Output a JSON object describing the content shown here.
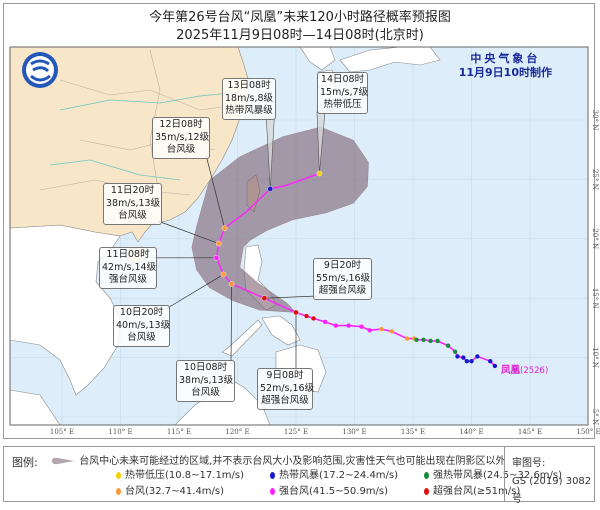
{
  "title": "今年第26号台风“凤凰”未来120小时路径概率预报图",
  "subtitle": "2025年11月9日08时—14日08时(北京时)",
  "agency": {
    "name": "中央气象台",
    "issued": "11月9日10时制作"
  },
  "typhoon": {
    "name": "凤凰",
    "code": "(2526)"
  },
  "axes": {
    "lon_labels": [
      "105° E",
      "110° E",
      "115° E",
      "120° E",
      "125° E",
      "130° E",
      "135° E",
      "140° E",
      "145° E",
      "150° E"
    ],
    "lon_values": [
      105,
      110,
      115,
      120,
      125,
      130,
      135,
      140,
      145,
      150
    ],
    "lat_labels": [
      "30° N",
      "25° N",
      "20° N",
      "15° N",
      "10° N",
      "5° N"
    ],
    "lat_values": [
      30,
      25,
      20,
      15,
      10,
      5
    ]
  },
  "colors": {
    "land_china": "#f8e6c8",
    "land_other": "#ffffff",
    "sea": "#ddeefa",
    "cone": "#7d5f6f",
    "track": "#ff22ff",
    "tropical_depression": "#f5d000",
    "tropical_storm": "#1a1acc",
    "severe_tropical_storm": "#1a8a3a",
    "typhoon": "#ff9a3c",
    "severe_typhoon": "#ff22ff",
    "super_typhoon": "#e01010"
  },
  "forecast_points": [
    {
      "time": "9日08时",
      "wind": "52m/s,16级",
      "grade": "超强台风级",
      "lon": 125.0,
      "lat": 13.8,
      "cat": "super_typhoon"
    },
    {
      "time": "9日20时",
      "wind": "55m/s,16级",
      "grade": "超强台风级",
      "lon": 122.3,
      "lat": 15.0,
      "cat": "super_typhoon"
    },
    {
      "time": "10日08时",
      "wind": "38m/s,13级",
      "grade": "台风级",
      "lon": 119.5,
      "lat": 16.2,
      "cat": "typhoon"
    },
    {
      "time": "10日20时",
      "wind": "40m/s,13级",
      "grade": "台风级",
      "lon": 118.8,
      "lat": 17.0,
      "cat": "typhoon"
    },
    {
      "time": "11日08时",
      "wind": "42m/s,14级",
      "grade": "强台风级",
      "lon": 118.2,
      "lat": 18.4,
      "cat": "severe_typhoon"
    },
    {
      "time": "11日20时",
      "wind": "38m/s,13级",
      "grade": "台风级",
      "lon": 118.4,
      "lat": 19.6,
      "cat": "typhoon"
    },
    {
      "time": "12日08时",
      "wind": "35m/s,12级",
      "grade": "台风级",
      "lon": 118.9,
      "lat": 20.9,
      "cat": "typhoon"
    },
    {
      "time": "13日08时",
      "wind": "18m/s,8级",
      "grade": "热带风暴级",
      "lon": 122.8,
      "lat": 24.2,
      "cat": "tropical_storm"
    },
    {
      "time": "14日08时",
      "wind": "15m/s,7级",
      "grade": "热带低压",
      "lon": 127.0,
      "lat": 25.5,
      "cat": "tropical_depression"
    }
  ],
  "forecast_path": [
    [
      125.0,
      13.8
    ],
    [
      122.3,
      15.0
    ],
    [
      119.5,
      16.2
    ],
    [
      118.8,
      17.0
    ],
    [
      118.2,
      18.4
    ],
    [
      118.4,
      19.6
    ],
    [
      118.9,
      20.9
    ],
    [
      120.8,
      22.3
    ],
    [
      122.8,
      24.2
    ],
    [
      124.2,
      24.5
    ],
    [
      127.0,
      25.5
    ]
  ],
  "past_track": [
    [
      125.0,
      13.8,
      "super_typhoon"
    ],
    [
      125.9,
      13.5,
      "super_typhoon"
    ],
    [
      126.5,
      13.3,
      "super_typhoon"
    ],
    [
      127.5,
      13.0,
      "severe_typhoon"
    ],
    [
      128.4,
      12.7,
      "severe_typhoon"
    ],
    [
      129.5,
      12.7,
      "severe_typhoon"
    ],
    [
      130.6,
      12.6,
      "severe_typhoon"
    ],
    [
      131.3,
      12.3,
      "severe_typhoon"
    ],
    [
      132.3,
      12.4,
      "typhoon"
    ],
    [
      133.2,
      12.2,
      "typhoon"
    ],
    [
      134.5,
      11.6,
      "typhoon"
    ],
    [
      135.1,
      11.6,
      "typhoon"
    ],
    [
      135.3,
      11.5,
      "severe_tropical_storm"
    ],
    [
      135.9,
      11.5,
      "severe_tropical_storm"
    ],
    [
      136.5,
      11.4,
      "severe_tropical_storm"
    ],
    [
      137.1,
      11.4,
      "severe_tropical_storm"
    ],
    [
      138.0,
      11.0,
      "severe_tropical_storm"
    ],
    [
      138.6,
      10.5,
      "severe_tropical_storm"
    ],
    [
      138.8,
      10.1,
      "tropical_storm"
    ],
    [
      139.3,
      10.0,
      "tropical_storm"
    ],
    [
      139.6,
      9.7,
      "tropical_storm"
    ],
    [
      140.0,
      9.7,
      "tropical_storm"
    ],
    [
      140.5,
      10.1,
      "tropical_storm"
    ],
    [
      141.6,
      9.7,
      "tropical_storm"
    ],
    [
      142.0,
      9.3,
      "tropical_storm"
    ]
  ],
  "probability_cone": [
    [
      125.0,
      13.8
    ],
    [
      121.9,
      14.0
    ],
    [
      119.6,
      14.8
    ],
    [
      117.6,
      15.9
    ],
    [
      116.5,
      17.4
    ],
    [
      116.1,
      19.3
    ],
    [
      116.5,
      21.0
    ],
    [
      117.6,
      24.9
    ],
    [
      120.2,
      26.9
    ],
    [
      123.9,
      28.6
    ],
    [
      127.1,
      29.4
    ],
    [
      129.9,
      28.3
    ],
    [
      131.2,
      26.4
    ],
    [
      131.1,
      24.4
    ],
    [
      129.9,
      23.0
    ],
    [
      127.6,
      22.2
    ],
    [
      124.7,
      21.6
    ],
    [
      122.5,
      20.7
    ],
    [
      121.1,
      19.9
    ],
    [
      120.5,
      19.3
    ],
    [
      120.2,
      17.6
    ],
    [
      121.7,
      16.3
    ],
    [
      124.2,
      14.6
    ]
  ],
  "legend": {
    "title": "图例:",
    "cone_text": "台风中心未来可能经过的区域,并不表示台风大小及影响范围,灾害性天气也可能出现在阴影区以外",
    "items": [
      {
        "label": "热带低压(10.8~17.1m/s)",
        "cat": "tropical_depression"
      },
      {
        "label": "热带风暴(17.2~24.4m/s)",
        "cat": "tropical_storm"
      },
      {
        "label": "强热带风暴(24.5~32.6m/s)",
        "cat": "severe_tropical_storm"
      },
      {
        "label": "台风(32.7~41.4m/s)",
        "cat": "typhoon"
      },
      {
        "label": "强台风(41.5~50.9m/s)",
        "cat": "severe_typhoon"
      },
      {
        "label": "超强台风(≥51m/s)",
        "cat": "super_typhoon"
      }
    ],
    "review_label": "审图号:",
    "review_number": "GS (2019) 3082号"
  }
}
